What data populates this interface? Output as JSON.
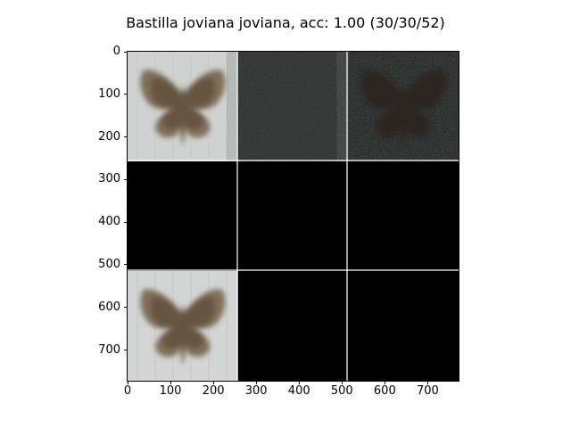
{
  "figure": {
    "title": "Bastilla joviana joviana, acc: 1.00 (30/30/52)"
  },
  "image_grid": {
    "rows": 3,
    "cols": 3,
    "cells": [
      {
        "row": 0,
        "col": 0,
        "content": "moth-light",
        "background": "#cfd2d1"
      },
      {
        "row": 0,
        "col": 1,
        "content": "noise-dark",
        "background": "#1f2220"
      },
      {
        "row": 0,
        "col": 2,
        "content": "moth-dark",
        "background": "#1d211f"
      },
      {
        "row": 1,
        "col": 0,
        "content": "black",
        "background": "#000000"
      },
      {
        "row": 1,
        "col": 1,
        "content": "black",
        "background": "#000000"
      },
      {
        "row": 1,
        "col": 2,
        "content": "black",
        "background": "#000000"
      },
      {
        "row": 2,
        "col": 0,
        "content": "moth-light",
        "background": "#d2d5d4"
      },
      {
        "row": 2,
        "col": 1,
        "content": "black",
        "background": "#000000"
      },
      {
        "row": 2,
        "col": 2,
        "content": "black",
        "background": "#000000"
      }
    ]
  },
  "axes": {
    "xticks": [
      "0",
      "100",
      "200",
      "300",
      "400",
      "500",
      "600",
      "700"
    ],
    "yticks": [
      "0",
      "100",
      "200",
      "300",
      "400",
      "500",
      "600",
      "700"
    ],
    "xlim": [
      0,
      772
    ],
    "ylim": [
      772,
      0
    ]
  },
  "colors": {
    "grid_separator": "#ffffff",
    "moth_body": "#7d6a52",
    "moth_shadow": "#4f3f2e"
  }
}
